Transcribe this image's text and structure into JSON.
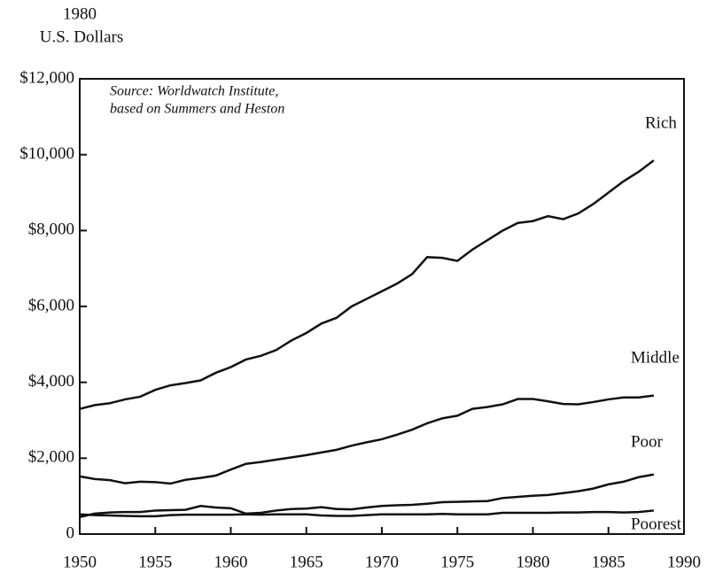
{
  "chart_data": {
    "type": "line",
    "ylabel": [
      "1980",
      "U.S. Dollars"
    ],
    "annotation": [
      "Source: Worldwatch Institute,",
      "based on Summers and Heston"
    ],
    "x": [
      1950,
      1951,
      1952,
      1953,
      1954,
      1955,
      1956,
      1957,
      1958,
      1959,
      1960,
      1961,
      1962,
      1963,
      1964,
      1965,
      1966,
      1967,
      1968,
      1969,
      1970,
      1971,
      1972,
      1973,
      1974,
      1975,
      1976,
      1977,
      1978,
      1979,
      1980,
      1981,
      1982,
      1983,
      1984,
      1985,
      1986,
      1987,
      1988
    ],
    "series": [
      {
        "name": "Rich",
        "color": "#111111",
        "values": [
          3300,
          3400,
          3450,
          3550,
          3620,
          3800,
          3920,
          3980,
          4050,
          4250,
          4400,
          4600,
          4700,
          4850,
          5100,
          5300,
          5550,
          5700,
          6000,
          6200,
          6400,
          6600,
          6850,
          7300,
          7280,
          7200,
          7500,
          7750,
          8000,
          8200,
          8250,
          8380,
          8300,
          8450,
          8700,
          9000,
          9300,
          9550,
          9850
        ]
      },
      {
        "name": "Middle",
        "color": "#111111",
        "values": [
          1520,
          1450,
          1420,
          1340,
          1380,
          1370,
          1330,
          1430,
          1480,
          1540,
          1700,
          1850,
          1900,
          1960,
          2020,
          2080,
          2150,
          2220,
          2330,
          2420,
          2500,
          2620,
          2750,
          2920,
          3050,
          3120,
          3300,
          3350,
          3420,
          3560,
          3560,
          3500,
          3430,
          3420,
          3480,
          3550,
          3600,
          3600,
          3650
        ]
      },
      {
        "name": "Poor",
        "color": "#111111",
        "values": [
          450,
          540,
          570,
          580,
          580,
          620,
          630,
          640,
          740,
          700,
          680,
          540,
          560,
          620,
          660,
          670,
          710,
          660,
          650,
          700,
          740,
          760,
          770,
          800,
          840,
          850,
          860,
          870,
          950,
          980,
          1010,
          1030,
          1080,
          1130,
          1200,
          1310,
          1380,
          1500,
          1570
        ]
      },
      {
        "name": "Poorest",
        "color": "#111111",
        "values": [
          520,
          500,
          490,
          480,
          470,
          470,
          500,
          510,
          510,
          510,
          510,
          520,
          510,
          520,
          520,
          520,
          490,
          480,
          480,
          500,
          520,
          520,
          520,
          520,
          530,
          520,
          520,
          520,
          560,
          560,
          560,
          560,
          570,
          570,
          580,
          580,
          570,
          580,
          620
        ]
      }
    ],
    "xlim": [
      1950,
      1990
    ],
    "xticks": [
      1950,
      1955,
      1960,
      1965,
      1970,
      1975,
      1980,
      1985,
      1990
    ],
    "ylim": [
      0,
      12000
    ],
    "yticks": [
      0,
      {
        "value": 2000,
        "label": "$2,000"
      },
      {
        "value": 4000,
        "label": "$4,000"
      },
      {
        "value": 6000,
        "label": "$6,000"
      },
      {
        "value": 8000,
        "label": "$8,000"
      },
      {
        "value": 10000,
        "label": "$10,000"
      },
      {
        "value": 12000,
        "label": "$12,000"
      }
    ]
  }
}
